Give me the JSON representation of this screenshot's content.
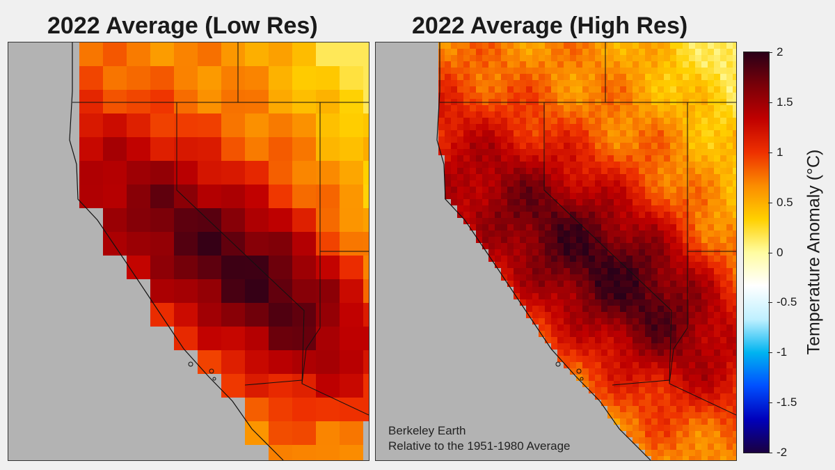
{
  "panels": [
    {
      "title": "2022 Average (Low Res)",
      "resolution": "low"
    },
    {
      "title": "2022 Average (High Res)",
      "resolution": "high"
    }
  ],
  "credit": {
    "line1": "Berkeley Earth",
    "line2": "Relative to the 1951-1980 Average"
  },
  "colorbar": {
    "title": "Temperature  Anomaly  (°C)",
    "ticks": [
      "2",
      "1.5",
      "1",
      "0.5",
      "0",
      "-0.5",
      "-1",
      "-1.5",
      "-2"
    ],
    "range": [
      -2,
      2
    ],
    "stops": [
      "#2a0018",
      "#7a0008",
      "#c00000",
      "#ee3000",
      "#fb8c00",
      "#ffd000",
      "#fffca0",
      "#ffffff",
      "#bff0ff",
      "#00b4f0",
      "#0050ff",
      "#0000bb",
      "#1a0040"
    ]
  },
  "colors": {
    "land_mask": "#b3b3b3",
    "background": "#f0f0f0",
    "border_lines": "#111111"
  }
}
